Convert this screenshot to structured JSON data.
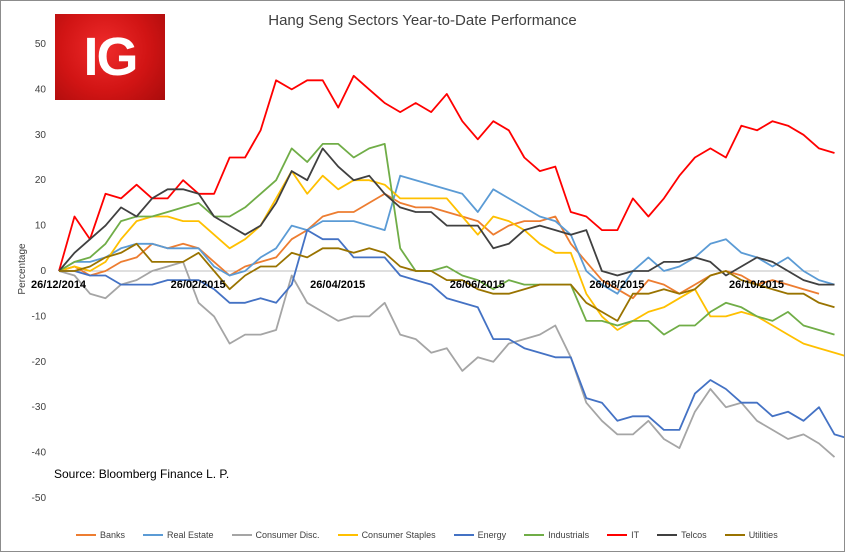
{
  "logo": {
    "text": "IG"
  },
  "source": "Source: Bloomberg Finance L. P.",
  "chart_data": {
    "type": "line",
    "title": "Hang Seng Sectors Year-to-Date Performance",
    "ylabel": "Percentage",
    "xlabel": "",
    "ylim": [
      -50,
      50
    ],
    "yticks": [
      50,
      40,
      30,
      20,
      10,
      0,
      -10,
      -20,
      -30,
      -40,
      -50
    ],
    "x_labels": [
      {
        "label": "26/12/2014",
        "index": 0
      },
      {
        "label": "26/02/2015",
        "index": 9
      },
      {
        "label": "26/04/2015",
        "index": 18
      },
      {
        "label": "26/06/2015",
        "index": 27
      },
      {
        "label": "26/08/2015",
        "index": 36
      },
      {
        "label": "26/10/2015",
        "index": 45
      }
    ],
    "legend_position": "bottom",
    "series": [
      {
        "name": "Banks",
        "color": "#ed7d31",
        "values": [
          0,
          1,
          -1,
          0,
          2,
          3,
          6,
          5,
          6,
          5,
          2,
          -1,
          1,
          2,
          3,
          7,
          9,
          12,
          13,
          13,
          15,
          17,
          15,
          14,
          14,
          13,
          12,
          11,
          8,
          10,
          11,
          11,
          12,
          6,
          2,
          -2,
          -4,
          -6,
          -2,
          -3,
          -5,
          -3,
          -1,
          0,
          -1,
          -3,
          -2,
          -3,
          -4,
          -5
        ]
      },
      {
        "name": "Real Estate",
        "color": "#5b9bd5",
        "values": [
          0,
          2,
          2,
          3,
          5,
          6,
          6,
          5,
          5,
          5,
          1,
          -1,
          0,
          3,
          5,
          10,
          9,
          11,
          11,
          11,
          10,
          9,
          21,
          20,
          19,
          18,
          17,
          13,
          18,
          16,
          14,
          12,
          11,
          8,
          0,
          -3,
          -5,
          0,
          3,
          0,
          1,
          3,
          6,
          7,
          4,
          3,
          1,
          3,
          0,
          -2,
          -3
        ]
      },
      {
        "name": "Consumer Disc.",
        "color": "#a5a5a5",
        "values": [
          0,
          -1,
          -5,
          -6,
          -3,
          -2,
          0,
          1,
          2,
          -7,
          -10,
          -16,
          -14,
          -14,
          -13,
          -1,
          -7,
          -9,
          -11,
          -10,
          -10,
          -7,
          -14,
          -15,
          -18,
          -17,
          -22,
          -19,
          -20,
          -16,
          -15,
          -14,
          -12,
          -19,
          -29,
          -33,
          -36,
          -36,
          -33,
          -37,
          -39,
          -31,
          -26,
          -30,
          -29,
          -33,
          -35,
          -37,
          -36,
          -38,
          -41
        ]
      },
      {
        "name": "Consumer Staples",
        "color": "#ffc000",
        "values": [
          0,
          1,
          0,
          2,
          7,
          11,
          12,
          12,
          11,
          11,
          8,
          5,
          7,
          10,
          16,
          22,
          17,
          21,
          18,
          20,
          20,
          19,
          16,
          16,
          16,
          16,
          12,
          8,
          12,
          11,
          9,
          6,
          4,
          4,
          -5,
          -10,
          -13,
          -11,
          -9,
          -8,
          -6,
          -4,
          -10,
          -10,
          -9,
          -10,
          -12,
          -14,
          -16,
          -17,
          -18,
          -19
        ]
      },
      {
        "name": "Energy",
        "color": "#4472c4",
        "values": [
          0,
          0,
          -1,
          -1,
          -3,
          -3,
          -3,
          -2,
          -2,
          -2,
          -4,
          -7,
          -7,
          -6,
          -7,
          -3,
          9,
          7,
          7,
          3,
          3,
          3,
          -1,
          -2,
          -3,
          -6,
          -7,
          -8,
          -15,
          -15,
          -17,
          -18,
          -19,
          -19,
          -28,
          -29,
          -33,
          -32,
          -32,
          -35,
          -35,
          -27,
          -24,
          -26,
          -29,
          -29,
          -32,
          -31,
          -33,
          -30,
          -36,
          -37
        ]
      },
      {
        "name": "Industrials",
        "color": "#70ad47",
        "values": [
          0,
          2,
          3,
          6,
          11,
          12,
          12,
          13,
          14,
          15,
          12,
          12,
          14,
          17,
          20,
          27,
          24,
          28,
          28,
          25,
          27,
          28,
          5,
          0,
          0,
          1,
          -1,
          -2,
          -4,
          -2,
          -3,
          -3,
          -3,
          -3,
          -11,
          -11,
          -12,
          -11,
          -11,
          -14,
          -12,
          -12,
          -9,
          -7,
          -8,
          -10,
          -11,
          -9,
          -12,
          -13,
          -14
        ]
      },
      {
        "name": "IT",
        "color": "#ff0000",
        "values": [
          0,
          12,
          7,
          17,
          16,
          19,
          16,
          16,
          20,
          17,
          17,
          25,
          25,
          31,
          42,
          40,
          42,
          42,
          36,
          43,
          40,
          37,
          35,
          37,
          35,
          39,
          33,
          29,
          33,
          31,
          25,
          22,
          23,
          13,
          12,
          9,
          9,
          16,
          12,
          16,
          21,
          25,
          27,
          25,
          32,
          31,
          33,
          32,
          30,
          27,
          26
        ]
      },
      {
        "name": "Telcos",
        "color": "#404040",
        "values": [
          0,
          4,
          7,
          10,
          14,
          12,
          16,
          18,
          18,
          17,
          12,
          10,
          8,
          10,
          15,
          22,
          20,
          27,
          23,
          20,
          21,
          17,
          14,
          13,
          13,
          10,
          10,
          10,
          5,
          6,
          9,
          10,
          9,
          8,
          9,
          0,
          -1,
          0,
          0,
          2,
          2,
          3,
          2,
          -1,
          1,
          3,
          2,
          0,
          -2,
          -3,
          -3
        ]
      },
      {
        "name": "Utilities",
        "color": "#997300",
        "values": [
          0,
          0,
          1,
          3,
          4,
          6,
          2,
          2,
          2,
          4,
          0,
          -4,
          -1,
          1,
          1,
          4,
          3,
          5,
          5,
          4,
          5,
          4,
          1,
          0,
          0,
          -2,
          -2,
          -4,
          -5,
          -5,
          -4,
          -3,
          -3,
          -3,
          -7,
          -9,
          -11,
          -5,
          -5,
          -4,
          -5,
          -4,
          -1,
          0,
          -2,
          -3,
          -4,
          -5,
          -5,
          -7,
          -8
        ]
      }
    ]
  }
}
